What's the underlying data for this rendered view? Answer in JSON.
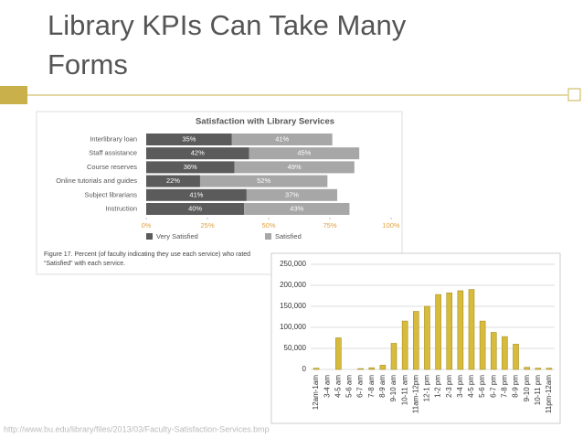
{
  "title": [
    "Library KPIs Can Take Many",
    "Forms"
  ],
  "source": "http://www.bu.edu/library/files/2013/03/Faculty-Satisfaction-Services.bmp",
  "chart_data": [
    {
      "type": "bar",
      "orientation": "horizontal",
      "stacked": true,
      "title": "Satisfaction with Library Services",
      "categories": [
        "Interlibrary loan",
        "Staff assistance",
        "Course reserves",
        "Online tutorials and guides",
        "Subject librarians",
        "Instruction"
      ],
      "series": [
        {
          "name": "Very Satisfied",
          "color": "#5b5b5b",
          "values": [
            35,
            42,
            36,
            22,
            41,
            40
          ],
          "value_labels": [
            "35%",
            "42%",
            "36%",
            "22%",
            "41%",
            "40%"
          ]
        },
        {
          "name": "Satisfied",
          "color": "#a7a7a7",
          "values": [
            41,
            45,
            49,
            52,
            37,
            43
          ],
          "value_labels": [
            "41%",
            "45%",
            "49%",
            "52%",
            "37%",
            "43%"
          ]
        }
      ],
      "xlim": [
        0,
        100
      ],
      "xticks": [
        {
          "value": 0,
          "label": "0%"
        },
        {
          "value": 25,
          "label": "25%"
        },
        {
          "value": 50,
          "label": "50%"
        },
        {
          "value": 75,
          "label": "75%"
        },
        {
          "value": 100,
          "label": "100%"
        }
      ],
      "legend": "bottom",
      "caption": [
        "Figure 17. Percent (of faculty indicating they use each service) who rated",
        "“Satisfied” with each service."
      ]
    },
    {
      "type": "bar",
      "orientation": "vertical",
      "color": "#d6bb3c",
      "categories": [
        "12am-1am",
        "3-4 am",
        "4-5 am",
        "5-6 am",
        "6-7 am",
        "7-8 am",
        "8-9 am",
        "9-10 am",
        "10-11 am",
        "11am-12pm",
        "12-1 pm",
        "1-2 pm",
        "2-3 pm",
        "3-4 pm",
        "4-5 pm",
        "5-6 pm",
        "6-7 pm",
        "7-8 pm",
        "8-9 pm",
        "9-10 pm",
        "10-11 pm",
        "11pm-12am"
      ],
      "values": [
        3000,
        0,
        75000,
        0,
        2000,
        4000,
        10000,
        62000,
        115000,
        138000,
        150000,
        178000,
        182000,
        187000,
        190000,
        115000,
        88000,
        78000,
        60000,
        5000,
        3000,
        3000
      ],
      "ylim": [
        0,
        250000
      ],
      "yticks": [
        0,
        {
          "value": 50000,
          "label": "50,000"
        },
        {
          "value": 100000,
          "label": "100,000"
        },
        {
          "value": 150000,
          "label": "150,000"
        },
        {
          "value": 200000,
          "label": "200,000"
        },
        {
          "value": 250000,
          "label": "250,000"
        }
      ],
      "grid": true
    }
  ]
}
